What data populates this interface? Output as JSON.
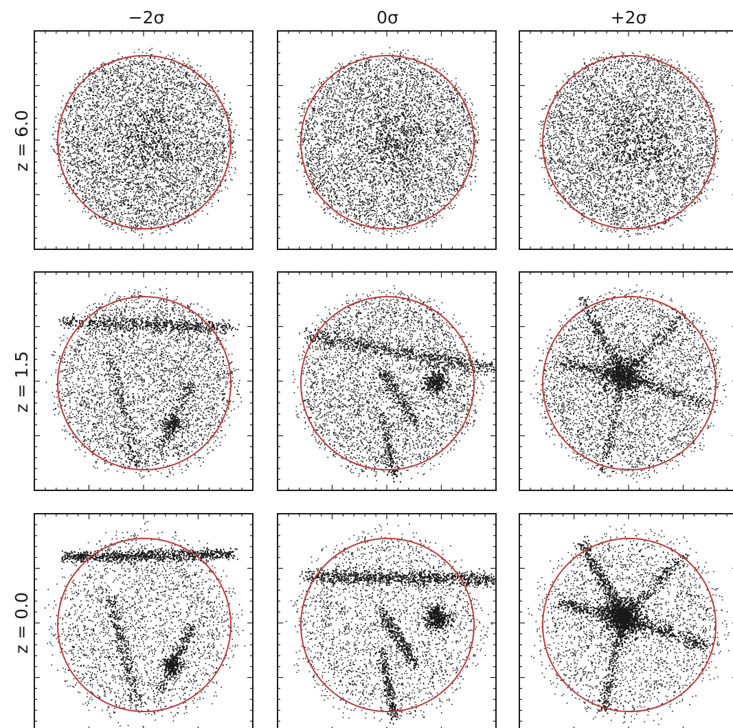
{
  "columns": [
    {
      "label": "−2σ"
    },
    {
      "label": "0σ"
    },
    {
      "label": "+2σ"
    }
  ],
  "rows": [
    {
      "label": "z = 6.0"
    },
    {
      "label": "z = 1.5"
    },
    {
      "label": "z = 0.0"
    }
  ],
  "panels": [
    {
      "row": 0,
      "col": 0,
      "structure": "uniform"
    },
    {
      "row": 0,
      "col": 1,
      "structure": "uniform"
    },
    {
      "row": 0,
      "col": 2,
      "structure": "uniform"
    },
    {
      "row": 1,
      "col": 0,
      "structure": "filament-top"
    },
    {
      "row": 1,
      "col": 1,
      "structure": "diagonal-filament"
    },
    {
      "row": 1,
      "col": 2,
      "structure": "central-node"
    },
    {
      "row": 2,
      "col": 0,
      "structure": "filament-top"
    },
    {
      "row": 2,
      "col": 1,
      "structure": "diagonal-filament"
    },
    {
      "row": 2,
      "col": 2,
      "structure": "central-node"
    }
  ],
  "colors": {
    "circle": "#c0393b",
    "particles": "#1a1a1a",
    "frame": "#1a1a1a"
  }
}
